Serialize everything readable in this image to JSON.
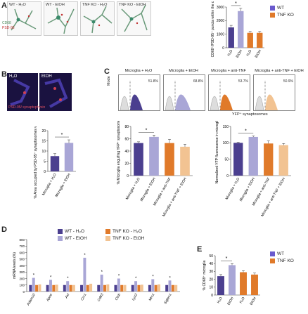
{
  "panels": {
    "A": "A",
    "B": "B",
    "C": "C",
    "D": "D",
    "E": "E"
  },
  "colors": {
    "wt_h2o": "#4b3f8f",
    "wt_etoh": "#a9a6d6",
    "tnf_h2o": "#e07a2a",
    "tnf_etoh": "#f2c392",
    "wt": "#6a5acd",
    "tnf": "#e07a2a"
  },
  "panel_a": {
    "images": [
      "WT - H₂O",
      "WT - EtOH",
      "TNF KO - H₂O",
      "TNF KO - EtOH"
    ],
    "stain_labels": [
      "CD68",
      "PSD-95"
    ],
    "legend": [
      "WT",
      "TNF KO"
    ]
  },
  "panel_b": {
    "images": [
      "H₂O",
      "EtOH"
    ],
    "stain_label": "PSD-95/ synaptophysin"
  },
  "panel_c": {
    "hist_titles": [
      "Microglia + H₂O",
      "Microglia + EtOH",
      "Microglia + anti-TNF",
      "Microglia + anti-TNF + EtOH"
    ],
    "percents": [
      "51.8%",
      "68.8%",
      "53.7%",
      "50.9%"
    ],
    "ylabel": "Mode",
    "xlabel": "YFP⁺ synaptosomes"
  },
  "panel_d": {
    "legend": [
      "WT - H₂O",
      "WT - EtOH",
      "TNF KO - H₂O",
      "TNF KO - EtOH"
    ]
  },
  "panel_e": {
    "legend": [
      "WT",
      "TNF KO"
    ]
  },
  "chart_data": [
    {
      "id": "A-bar",
      "type": "bar",
      "categories": [
        "H₂O",
        "EtOH",
        "H₂O",
        "EtOH"
      ],
      "values": [
        1500,
        2700,
        1100,
        1100
      ],
      "errors": [
        150,
        200,
        100,
        100
      ],
      "ylabel": "CD68⁺/PSD-95⁺ puncta within the cell",
      "ylim": [
        0,
        3000
      ],
      "yticks": [
        0,
        1000,
        2000,
        3000
      ],
      "significance": "*"
    },
    {
      "id": "B-bar",
      "type": "bar",
      "categories": [
        "Microglia + H₂O",
        "Microglia + EtOH"
      ],
      "values": [
        7.5,
        14
      ],
      "errors": [
        1.2,
        1.5
      ],
      "ylabel": "% Area occupied by PSD-95⁺ synaptosomes within microglia",
      "ylim": [
        0,
        20
      ],
      "yticks": [
        0,
        5,
        10,
        15,
        20
      ],
      "significance": "*"
    },
    {
      "id": "C-bar1",
      "type": "bar",
      "categories": [
        "Microglia + H₂O",
        "Microglia + EtOH",
        "Microglia + anti-TNF",
        "Microglia + anti-TNF + EtOH"
      ],
      "values": [
        53,
        63,
        53,
        47
      ],
      "errors": [
        2,
        3,
        6,
        4
      ],
      "ylabel": "% Microglia engulfing YFP⁺ synaptosomes",
      "ylim": [
        0,
        80
      ],
      "yticks": [
        0,
        20,
        40,
        60,
        80
      ],
      "significance": "*"
    },
    {
      "id": "C-bar2",
      "type": "bar",
      "categories": [
        "Microglia + H₂O",
        "Microglia + EtOH",
        "Microglia + anti-TNF",
        "Microglia + anti-TNF + EtOH"
      ],
      "values": [
        100,
        118,
        98,
        93
      ],
      "errors": [
        2,
        3,
        8,
        5
      ],
      "ylabel": "Normalized YFP fluorescence in microglia",
      "ylim": [
        0,
        150
      ],
      "yticks": [
        0,
        50,
        100,
        150
      ],
      "significance": "*"
    },
    {
      "id": "D-bar",
      "type": "bar",
      "categories": [
        "Adam10",
        "Apoe",
        "Axl",
        "Ccr1",
        "Cd63",
        "Ctsb",
        "Lyz2",
        "Mrc1",
        "Siglec1"
      ],
      "ylabel": "mRNA levels (%)",
      "ylim": [
        0,
        800
      ],
      "yticks": [
        0,
        100,
        200,
        300,
        400,
        500,
        600,
        700,
        800
      ],
      "series": [
        {
          "name": "WT - H₂O",
          "values": [
            100,
            100,
            100,
            100,
            100,
            100,
            100,
            100,
            100
          ]
        },
        {
          "name": "WT - EtOH",
          "values": [
            210,
            180,
            160,
            520,
            260,
            200,
            160,
            190,
            170
          ]
        },
        {
          "name": "TNF KO - H₂O",
          "values": [
            100,
            100,
            100,
            100,
            100,
            100,
            100,
            100,
            100
          ]
        },
        {
          "name": "TNF KO - EtOH",
          "values": [
            110,
            105,
            100,
            120,
            110,
            100,
            105,
            110,
            100
          ]
        }
      ],
      "significance": "*"
    },
    {
      "id": "E-bar",
      "type": "bar",
      "categories": [
        "H₂O",
        "EtOH",
        "H₂O",
        "EtOH"
      ],
      "values": [
        24,
        38,
        29,
        26
      ],
      "errors": [
        2,
        2,
        2,
        2
      ],
      "ylabel": "% CD68⁺ microglia",
      "ylim": [
        0,
        50
      ],
      "yticks": [
        0,
        10,
        20,
        30,
        40,
        50
      ],
      "significance": "*"
    }
  ]
}
